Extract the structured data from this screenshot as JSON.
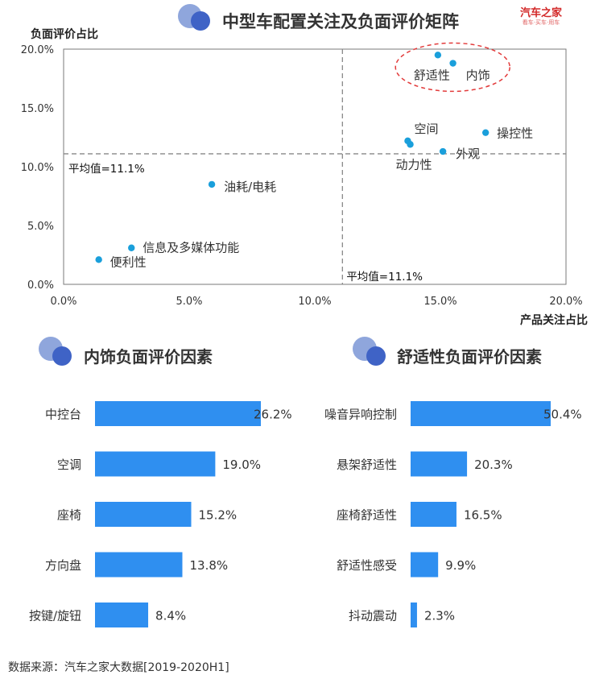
{
  "header": {
    "title": "中型车配置关注及负面评价矩阵",
    "logo_text": "汽车之家",
    "logo_subtext": "看车·买车·用车"
  },
  "colors": {
    "accent": "#1a9fdb",
    "bar": "#2f8ff0",
    "icon_light": "#8fa6dc",
    "icon_dark": "#3f63c6",
    "highlight_ellipse": "#e23b3b",
    "avg_line": "#888888"
  },
  "footer": {
    "source": "数据来源：汽车之家大数据[2019-2020H1]"
  },
  "chart_data": [
    {
      "type": "scatter",
      "title": "中型车配置关注及负面评价矩阵",
      "xlabel": "产品关注占比",
      "ylabel": "负面评价占比",
      "xlim": [
        0,
        20
      ],
      "ylim": [
        0,
        20
      ],
      "x_ticks": [
        "0.0%",
        "5.0%",
        "10.0%",
        "15.0%",
        "20.0%"
      ],
      "y_ticks": [
        "0.0%",
        "5.0%",
        "10.0%",
        "15.0%",
        "20.0%"
      ],
      "grid": false,
      "reference_lines": {
        "x_avg": 11.1,
        "x_avg_label": "平均值=11.1%",
        "y_avg": 11.1,
        "y_avg_label": "平均值=11.1%"
      },
      "highlight": [
        "舒适性",
        "内饰"
      ],
      "points": [
        {
          "label": "舒适性",
          "x": 14.9,
          "y": 19.5
        },
        {
          "label": "内饰",
          "x": 15.5,
          "y": 18.8
        },
        {
          "label": "操控性",
          "x": 16.8,
          "y": 12.9
        },
        {
          "label": "空间",
          "x": 13.7,
          "y": 12.2
        },
        {
          "label": "动力性",
          "x": 13.8,
          "y": 11.9
        },
        {
          "label": "外观",
          "x": 15.1,
          "y": 11.3
        },
        {
          "label": "油耗/电耗",
          "x": 5.9,
          "y": 8.5
        },
        {
          "label": "信息及多媒体功能",
          "x": 2.7,
          "y": 3.1
        },
        {
          "label": "便利性",
          "x": 1.4,
          "y": 2.1
        }
      ]
    },
    {
      "type": "bar",
      "orientation": "horizontal",
      "title": "内饰负面评价因素",
      "categories": [
        "中控台",
        "空调",
        "座椅",
        "方向盘",
        "按键/旋钮"
      ],
      "values": [
        26.2,
        19.0,
        15.2,
        13.8,
        8.4
      ],
      "value_labels": [
        "26.2%",
        "19.0%",
        "15.2%",
        "13.8%",
        "8.4%"
      ]
    },
    {
      "type": "bar",
      "orientation": "horizontal",
      "title": "舒适性负面评价因素",
      "categories": [
        "噪音异响控制",
        "悬架舒适性",
        "座椅舒适性",
        "舒适性感受",
        "抖动震动"
      ],
      "values": [
        50.4,
        20.3,
        16.5,
        9.9,
        2.3
      ],
      "value_labels": [
        "50.4%",
        "20.3%",
        "16.5%",
        "9.9%",
        "2.3%"
      ]
    }
  ]
}
